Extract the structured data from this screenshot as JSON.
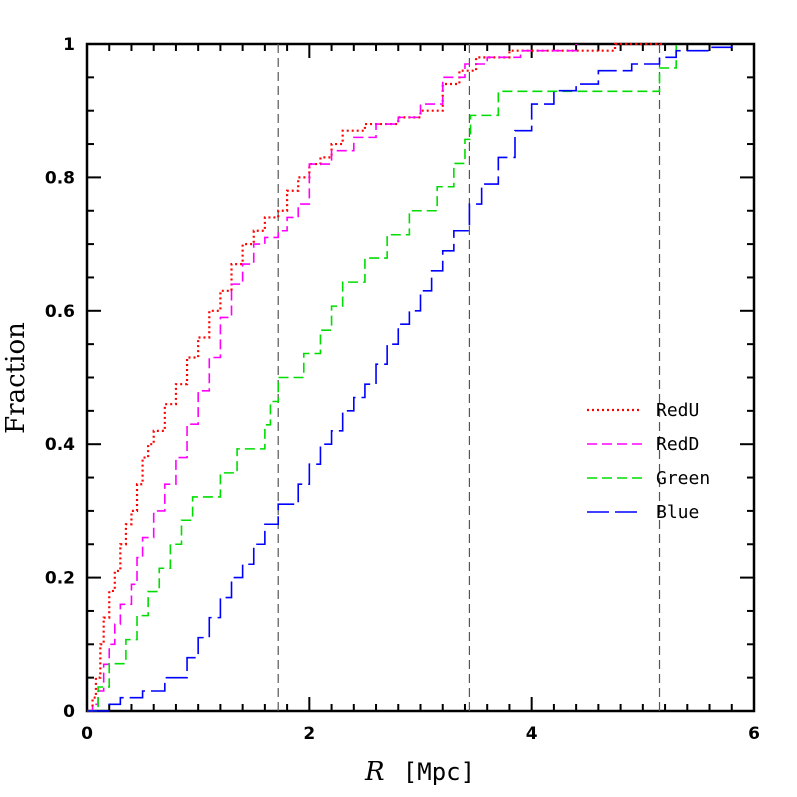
{
  "chart_data": {
    "type": "line",
    "xlabel_symbol": "R",
    "xlabel_unit": "[Mpc]",
    "ylabel": "Fraction",
    "xlim": [
      0,
      6
    ],
    "ylim": [
      0,
      1
    ],
    "xticks": [
      0,
      2,
      4,
      6
    ],
    "yticks": [
      0,
      0.2,
      0.4,
      0.6,
      0.8,
      1
    ],
    "ytick_labels": [
      "0",
      "0.2",
      "0.4",
      "0.6",
      "0.8",
      "1"
    ],
    "grid": false,
    "legend_position": "right",
    "vertical_lines": [
      1.72,
      3.44,
      5.15
    ],
    "series": [
      {
        "name": "RedU",
        "color": "#ff0000",
        "style": "dotted",
        "points": [
          [
            0,
            0
          ],
          [
            0.05,
            0.02
          ],
          [
            0.08,
            0.05
          ],
          [
            0.12,
            0.1
          ],
          [
            0.15,
            0.14
          ],
          [
            0.2,
            0.18
          ],
          [
            0.25,
            0.21
          ],
          [
            0.3,
            0.25
          ],
          [
            0.35,
            0.28
          ],
          [
            0.4,
            0.3
          ],
          [
            0.45,
            0.34
          ],
          [
            0.5,
            0.38
          ],
          [
            0.55,
            0.4
          ],
          [
            0.6,
            0.42
          ],
          [
            0.7,
            0.46
          ],
          [
            0.8,
            0.49
          ],
          [
            0.9,
            0.53
          ],
          [
            1.0,
            0.56
          ],
          [
            1.1,
            0.6
          ],
          [
            1.2,
            0.63
          ],
          [
            1.3,
            0.67
          ],
          [
            1.4,
            0.7
          ],
          [
            1.5,
            0.72
          ],
          [
            1.6,
            0.74
          ],
          [
            1.72,
            0.75
          ],
          [
            1.8,
            0.78
          ],
          [
            1.9,
            0.8
          ],
          [
            2.0,
            0.82
          ],
          [
            2.1,
            0.83
          ],
          [
            2.2,
            0.85
          ],
          [
            2.3,
            0.87
          ],
          [
            2.5,
            0.88
          ],
          [
            2.8,
            0.89
          ],
          [
            3.0,
            0.9
          ],
          [
            3.2,
            0.94
          ],
          [
            3.35,
            0.96
          ],
          [
            3.5,
            0.98
          ],
          [
            3.8,
            0.99
          ],
          [
            4.5,
            0.99
          ],
          [
            4.75,
            1.0
          ],
          [
            5.2,
            1.0
          ]
        ]
      },
      {
        "name": "RedD",
        "color": "#ff00ff",
        "style": "dashed",
        "points": [
          [
            0,
            0
          ],
          [
            0.05,
            0.01
          ],
          [
            0.1,
            0.03
          ],
          [
            0.15,
            0.07
          ],
          [
            0.2,
            0.1
          ],
          [
            0.25,
            0.13
          ],
          [
            0.3,
            0.16
          ],
          [
            0.4,
            0.19
          ],
          [
            0.45,
            0.23
          ],
          [
            0.5,
            0.26
          ],
          [
            0.6,
            0.3
          ],
          [
            0.7,
            0.34
          ],
          [
            0.8,
            0.38
          ],
          [
            0.9,
            0.43
          ],
          [
            1.0,
            0.48
          ],
          [
            1.1,
            0.53
          ],
          [
            1.2,
            0.59
          ],
          [
            1.3,
            0.64
          ],
          [
            1.4,
            0.67
          ],
          [
            1.5,
            0.7
          ],
          [
            1.6,
            0.71
          ],
          [
            1.72,
            0.72
          ],
          [
            1.8,
            0.74
          ],
          [
            1.9,
            0.76
          ],
          [
            2.0,
            0.82
          ],
          [
            2.2,
            0.84
          ],
          [
            2.4,
            0.86
          ],
          [
            2.6,
            0.88
          ],
          [
            2.8,
            0.89
          ],
          [
            3.0,
            0.91
          ],
          [
            3.2,
            0.95
          ],
          [
            3.4,
            0.97
          ],
          [
            3.6,
            0.98
          ],
          [
            3.9,
            0.99
          ],
          [
            4.2,
            0.99
          ],
          [
            4.4,
            1.0
          ]
        ]
      },
      {
        "name": "Green",
        "color": "#00dd00",
        "style": "dashed",
        "points": [
          [
            0,
            0
          ],
          [
            0.1,
            0.036
          ],
          [
            0.2,
            0.071
          ],
          [
            0.35,
            0.107
          ],
          [
            0.45,
            0.143
          ],
          [
            0.55,
            0.179
          ],
          [
            0.65,
            0.214
          ],
          [
            0.75,
            0.25
          ],
          [
            0.85,
            0.286
          ],
          [
            0.95,
            0.321
          ],
          [
            1.2,
            0.357
          ],
          [
            1.35,
            0.393
          ],
          [
            1.6,
            0.429
          ],
          [
            1.65,
            0.464
          ],
          [
            1.72,
            0.5
          ],
          [
            1.95,
            0.536
          ],
          [
            2.1,
            0.571
          ],
          [
            2.2,
            0.607
          ],
          [
            2.3,
            0.643
          ],
          [
            2.5,
            0.679
          ],
          [
            2.7,
            0.714
          ],
          [
            2.9,
            0.75
          ],
          [
            3.15,
            0.786
          ],
          [
            3.3,
            0.821
          ],
          [
            3.4,
            0.857
          ],
          [
            3.45,
            0.893
          ],
          [
            3.7,
            0.929
          ],
          [
            4.1,
            0.929
          ],
          [
            5.0,
            0.929
          ],
          [
            5.15,
            0.964
          ],
          [
            5.3,
            1.0
          ]
        ]
      },
      {
        "name": "Blue",
        "color": "#0000ff",
        "style": "longdash",
        "points": [
          [
            0,
            0
          ],
          [
            0.2,
            0.01
          ],
          [
            0.3,
            0.02
          ],
          [
            0.5,
            0.03
          ],
          [
            0.7,
            0.05
          ],
          [
            0.9,
            0.08
          ],
          [
            1.0,
            0.11
          ],
          [
            1.1,
            0.14
          ],
          [
            1.2,
            0.17
          ],
          [
            1.3,
            0.2
          ],
          [
            1.4,
            0.22
          ],
          [
            1.5,
            0.25
          ],
          [
            1.6,
            0.28
          ],
          [
            1.72,
            0.31
          ],
          [
            1.9,
            0.34
          ],
          [
            2.0,
            0.37
          ],
          [
            2.1,
            0.4
          ],
          [
            2.2,
            0.42
          ],
          [
            2.3,
            0.45
          ],
          [
            2.4,
            0.47
          ],
          [
            2.5,
            0.49
          ],
          [
            2.6,
            0.52
          ],
          [
            2.7,
            0.55
          ],
          [
            2.8,
            0.58
          ],
          [
            2.9,
            0.6
          ],
          [
            3.0,
            0.63
          ],
          [
            3.1,
            0.66
          ],
          [
            3.2,
            0.69
          ],
          [
            3.3,
            0.72
          ],
          [
            3.44,
            0.76
          ],
          [
            3.55,
            0.79
          ],
          [
            3.7,
            0.83
          ],
          [
            3.85,
            0.87
          ],
          [
            4.0,
            0.91
          ],
          [
            4.2,
            0.93
          ],
          [
            4.4,
            0.94
          ],
          [
            4.6,
            0.96
          ],
          [
            4.9,
            0.97
          ],
          [
            5.15,
            0.98
          ],
          [
            5.3,
            0.99
          ],
          [
            5.6,
            0.995
          ],
          [
            5.8,
            1.0
          ]
        ]
      }
    ]
  }
}
